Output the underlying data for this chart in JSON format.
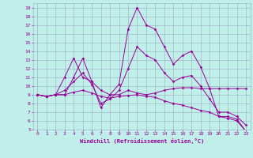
{
  "xlabel": "Windchill (Refroidissement éolien,°C)",
  "bg_color": "#c0eee8",
  "grid_color": "#a0b8c8",
  "line_color": "#990099",
  "x": [
    0,
    1,
    2,
    3,
    4,
    5,
    6,
    7,
    8,
    9,
    10,
    11,
    12,
    13,
    14,
    15,
    16,
    17,
    18,
    19,
    20,
    21,
    22,
    23
  ],
  "line1": [
    9.0,
    8.8,
    9.0,
    9.0,
    11.0,
    13.2,
    10.5,
    9.5,
    9.0,
    9.0,
    9.5,
    9.2,
    9.0,
    9.2,
    9.5,
    9.7,
    9.8,
    9.8,
    9.7,
    9.7,
    9.7,
    9.7,
    9.7,
    9.7
  ],
  "line2": [
    9.0,
    8.8,
    9.0,
    11.0,
    13.2,
    11.0,
    10.5,
    7.5,
    9.0,
    10.2,
    16.5,
    19.0,
    17.0,
    16.5,
    14.5,
    12.5,
    13.5,
    14.0,
    12.2,
    9.7,
    6.5,
    6.5,
    6.2,
    4.8
  ],
  "line3": [
    9.0,
    8.8,
    9.0,
    9.5,
    10.5,
    11.5,
    10.2,
    8.0,
    8.5,
    9.5,
    12.0,
    14.5,
    13.5,
    13.0,
    11.5,
    10.5,
    11.0,
    11.2,
    10.0,
    8.5,
    7.0,
    7.0,
    6.5,
    5.5
  ],
  "line4": [
    9.0,
    8.8,
    9.0,
    9.0,
    9.3,
    9.5,
    9.2,
    8.8,
    8.6,
    8.8,
    8.9,
    9.0,
    8.8,
    8.7,
    8.3,
    8.0,
    7.8,
    7.5,
    7.2,
    7.0,
    6.5,
    6.3,
    6.0,
    4.8
  ],
  "ylim": [
    5,
    19.5
  ],
  "yticks": [
    5,
    6,
    7,
    8,
    9,
    10,
    11,
    12,
    13,
    14,
    15,
    16,
    17,
    18,
    19
  ],
  "xlim": [
    -0.5,
    23.5
  ],
  "xticks": [
    0,
    1,
    2,
    3,
    4,
    5,
    6,
    7,
    8,
    9,
    10,
    11,
    12,
    13,
    14,
    15,
    16,
    17,
    18,
    19,
    20,
    21,
    22,
    23
  ]
}
